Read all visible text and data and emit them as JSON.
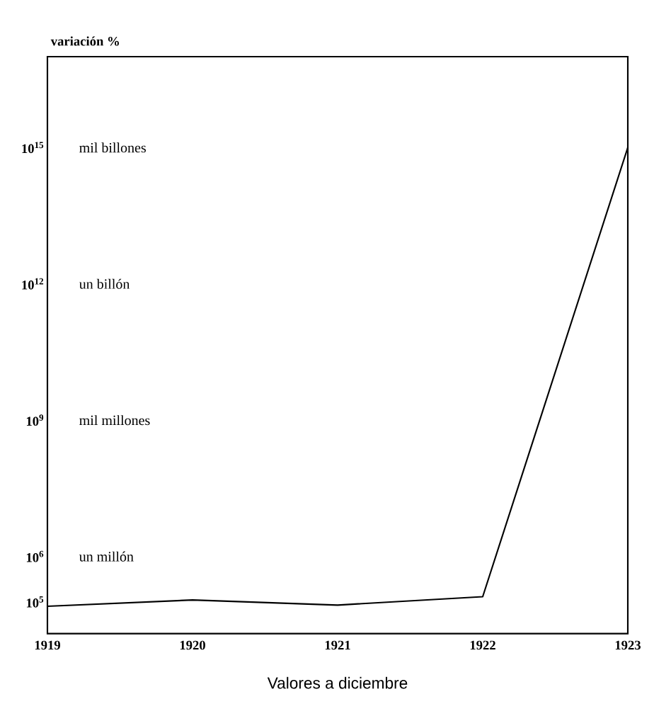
{
  "chart_data": {
    "type": "line",
    "ylabel": "variación %",
    "xlabel": "Valores a diciembre",
    "categories": [
      "1919",
      "1920",
      "1921",
      "1922",
      "1923"
    ],
    "series": [
      {
        "color": "#000000",
        "values": [
          80000,
          110000,
          85000,
          130000,
          1000000000000000
        ]
      }
    ],
    "log": true,
    "ylim": [
      20000,
      100000000000000000
    ],
    "yticks": [
      {
        "value": 100000,
        "label": "10$^{5}$"
      },
      {
        "value": 1000000,
        "label": "10$^{6}$"
      },
      {
        "value": 1000000000,
        "label": "10$^{9}$"
      },
      {
        "value": 1000000000000,
        "label": "10$^{12}$"
      },
      {
        "value": 1000000000000000,
        "label": "10$^{15}$"
      }
    ],
    "annotations": [
      "mil billones",
      "un billón",
      "mil millones",
      "un millón"
    ],
    "marker": "none",
    "line_style": "solid",
    "grid": false
  }
}
